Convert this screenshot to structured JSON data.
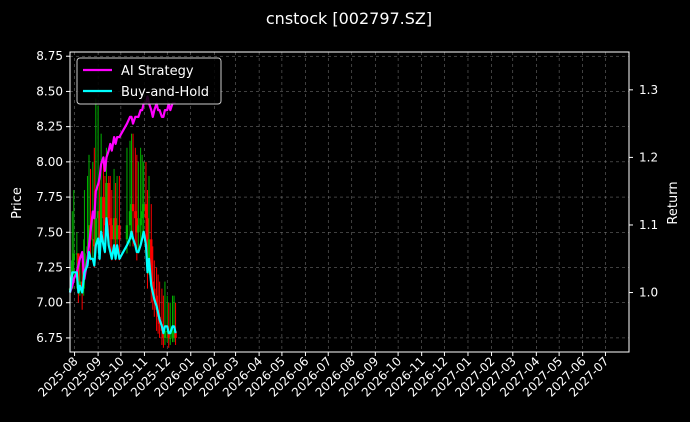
{
  "chart_data": {
    "type": "line",
    "title": "cnstock [002797.SZ]",
    "ylabel": "Price",
    "ylabel_right": "Return",
    "x_ticks": [
      "2025-08",
      "2025-09",
      "2025-10",
      "2025-11",
      "2025-12",
      "2026-01",
      "2026-02",
      "2026-03",
      "2026-04",
      "2026-05",
      "2026-06",
      "2026-07",
      "2026-08",
      "2026-09",
      "2026-10",
      "2026-11",
      "2026-12",
      "2027-01",
      "2027-02",
      "2027-03",
      "2027-04",
      "2027-05",
      "2027-06",
      "2027-07"
    ],
    "xlim": [
      "2025-07-26",
      "2027-08-01"
    ],
    "ylim_left": [
      6.65,
      8.78
    ],
    "yticks_left": [
      6.75,
      7.0,
      7.25,
      7.5,
      7.75,
      8.0,
      8.25,
      8.5,
      8.75
    ],
    "ylim_right": [
      0.912,
      1.356
    ],
    "yticks_right": [
      1.0,
      1.1,
      1.2,
      1.3
    ],
    "grid": true,
    "legend": "top-left",
    "legend_entries": [
      "AI Strategy",
      "Buy-and-Hold"
    ],
    "series": [
      {
        "name": "AI Strategy",
        "axis": "right",
        "color": "#ff00ff",
        "x": [
          "2025-07-26",
          "2025-07-29",
          "2025-07-31",
          "2025-08-04",
          "2025-08-06",
          "2025-08-08",
          "2025-08-11",
          "2025-08-13",
          "2025-08-14",
          "2025-08-18",
          "2025-08-20",
          "2025-08-22",
          "2025-08-25",
          "2025-08-27",
          "2025-08-29",
          "2025-09-01",
          "2025-09-03",
          "2025-09-05",
          "2025-09-08",
          "2025-09-10",
          "2025-09-12",
          "2025-09-15",
          "2025-09-17",
          "2025-09-19",
          "2025-09-22",
          "2025-09-24",
          "2025-09-26",
          "2025-09-29",
          "2025-10-09",
          "2025-10-13",
          "2025-10-15",
          "2025-10-17",
          "2025-10-20",
          "2025-10-22",
          "2025-10-24",
          "2025-10-27",
          "2025-10-29",
          "2025-10-31",
          "2025-11-03",
          "2025-11-05",
          "2025-11-07",
          "2025-11-10",
          "2025-11-12",
          "2025-11-14",
          "2025-11-17",
          "2025-11-19",
          "2025-11-21",
          "2025-11-24",
          "2025-11-26",
          "2025-11-28",
          "2025-12-01",
          "2025-12-03",
          "2025-12-05",
          "2025-12-08",
          "2025-12-10",
          "2025-12-12"
        ],
        "values": [
          1.0,
          1.01,
          1.02,
          1.03,
          1.04,
          1.05,
          1.06,
          1.03,
          1.02,
          1.05,
          1.07,
          1.09,
          1.12,
          1.11,
          1.15,
          1.16,
          1.17,
          1.19,
          1.2,
          1.18,
          1.2,
          1.21,
          1.22,
          1.21,
          1.23,
          1.22,
          1.23,
          1.23,
          1.25,
          1.26,
          1.26,
          1.25,
          1.26,
          1.26,
          1.26,
          1.27,
          1.27,
          1.28,
          1.28,
          1.29,
          1.28,
          1.27,
          1.26,
          1.27,
          1.28,
          1.27,
          1.27,
          1.26,
          1.26,
          1.27,
          1.27,
          1.28,
          1.27,
          1.28,
          1.28,
          1.28
        ]
      },
      {
        "name": "Buy-and-Hold",
        "axis": "right",
        "color": "#00ffff",
        "x": [
          "2025-07-26",
          "2025-07-29",
          "2025-07-31",
          "2025-08-04",
          "2025-08-06",
          "2025-08-08",
          "2025-08-11",
          "2025-08-13",
          "2025-08-14",
          "2025-08-18",
          "2025-08-20",
          "2025-08-22",
          "2025-08-25",
          "2025-08-27",
          "2025-08-29",
          "2025-09-01",
          "2025-09-03",
          "2025-09-05",
          "2025-09-08",
          "2025-09-10",
          "2025-09-12",
          "2025-09-15",
          "2025-09-17",
          "2025-09-19",
          "2025-09-22",
          "2025-09-24",
          "2025-09-26",
          "2025-09-29",
          "2025-10-09",
          "2025-10-13",
          "2025-10-15",
          "2025-10-17",
          "2025-10-20",
          "2025-10-22",
          "2025-10-24",
          "2025-10-27",
          "2025-10-29",
          "2025-10-31",
          "2025-11-03",
          "2025-11-05",
          "2025-11-07",
          "2025-11-10",
          "2025-11-12",
          "2025-11-14",
          "2025-11-17",
          "2025-11-19",
          "2025-11-21",
          "2025-11-24",
          "2025-11-26",
          "2025-11-28",
          "2025-12-01",
          "2025-12-03",
          "2025-12-05",
          "2025-12-08",
          "2025-12-10",
          "2025-12-12"
        ],
        "values": [
          1.0,
          1.03,
          1.03,
          1.03,
          1.0,
          1.01,
          1.0,
          1.02,
          1.03,
          1.04,
          1.06,
          1.05,
          1.05,
          1.04,
          1.07,
          1.08,
          1.05,
          1.09,
          1.07,
          1.06,
          1.11,
          1.07,
          1.06,
          1.05,
          1.07,
          1.05,
          1.07,
          1.05,
          1.07,
          1.08,
          1.09,
          1.08,
          1.07,
          1.06,
          1.06,
          1.07,
          1.08,
          1.09,
          1.07,
          1.03,
          1.05,
          1.01,
          1.0,
          0.99,
          0.98,
          0.97,
          0.96,
          0.95,
          0.94,
          0.95,
          0.95,
          0.94,
          0.94,
          0.95,
          0.95,
          0.94
        ]
      },
      {
        "name": "",
        "type": "candlestick",
        "axis": "left",
        "up_color": "#00b400",
        "down_color": "#ff0000",
        "x": [
          "2025-07-26",
          "2025-07-29",
          "2025-07-31",
          "2025-08-04",
          "2025-08-06",
          "2025-08-08",
          "2025-08-11",
          "2025-08-13",
          "2025-08-14",
          "2025-08-18",
          "2025-08-20",
          "2025-08-22",
          "2025-08-25",
          "2025-08-27",
          "2025-08-29",
          "2025-09-01",
          "2025-09-03",
          "2025-09-05",
          "2025-09-08",
          "2025-09-10",
          "2025-09-12",
          "2025-09-15",
          "2025-09-17",
          "2025-09-19",
          "2025-09-22",
          "2025-09-24",
          "2025-09-26",
          "2025-09-29",
          "2025-10-09",
          "2025-10-13",
          "2025-10-15",
          "2025-10-17",
          "2025-10-20",
          "2025-10-22",
          "2025-10-24",
          "2025-10-27",
          "2025-10-29",
          "2025-10-31",
          "2025-11-03",
          "2025-11-05",
          "2025-11-07",
          "2025-11-10",
          "2025-11-12",
          "2025-11-14",
          "2025-11-17",
          "2025-11-19",
          "2025-11-21",
          "2025-11-24",
          "2025-11-26",
          "2025-11-28",
          "2025-12-01",
          "2025-12-03",
          "2025-12-05",
          "2025-12-08",
          "2025-12-10",
          "2025-12-12"
        ],
        "close": [
          7.1,
          7.3,
          7.35,
          7.35,
          7.1,
          7.15,
          7.1,
          7.25,
          7.35,
          7.4,
          7.55,
          7.45,
          7.45,
          7.4,
          7.6,
          7.65,
          7.45,
          7.75,
          7.6,
          7.55,
          7.85,
          7.6,
          7.55,
          7.45,
          7.6,
          7.45,
          7.55,
          7.45,
          7.55,
          7.65,
          7.7,
          7.65,
          7.6,
          7.5,
          7.55,
          7.6,
          7.65,
          7.7,
          7.6,
          7.3,
          7.45,
          7.15,
          7.1,
          7.05,
          6.95,
          6.9,
          6.85,
          6.8,
          6.75,
          6.8,
          6.8,
          6.75,
          6.75,
          6.8,
          6.8,
          6.75
        ],
        "high": [
          7.45,
          7.65,
          7.8,
          7.5,
          7.35,
          7.3,
          7.3,
          7.45,
          7.8,
          7.9,
          8.05,
          7.95,
          8.0,
          8.1,
          8.45,
          8.4,
          7.9,
          8.2,
          8.0,
          7.9,
          8.1,
          7.9,
          7.9,
          7.8,
          7.95,
          7.85,
          7.9,
          7.9,
          8.1,
          8.15,
          8.2,
          8.2,
          8.1,
          8.05,
          8.0,
          8.1,
          8.05,
          8.0,
          8.0,
          7.8,
          7.9,
          7.7,
          7.4,
          7.3,
          7.25,
          7.2,
          7.15,
          7.1,
          7.05,
          7.15,
          7.05,
          7.0,
          7.0,
          7.05,
          7.05,
          7.0
        ],
        "low": [
          7.0,
          7.1,
          7.2,
          7.1,
          7.0,
          7.05,
          6.95,
          7.05,
          7.15,
          7.25,
          7.35,
          7.3,
          7.3,
          7.25,
          7.35,
          7.4,
          7.3,
          7.45,
          7.4,
          7.35,
          7.5,
          7.4,
          7.35,
          7.3,
          7.4,
          7.3,
          7.35,
          7.3,
          7.35,
          7.4,
          7.45,
          7.4,
          7.4,
          7.3,
          7.35,
          7.4,
          7.45,
          7.5,
          7.35,
          7.1,
          7.2,
          7.0,
          6.95,
          6.9,
          6.8,
          6.78,
          6.75,
          6.7,
          6.68,
          6.7,
          6.72,
          6.68,
          6.7,
          6.72,
          6.72,
          6.7
        ]
      }
    ]
  }
}
